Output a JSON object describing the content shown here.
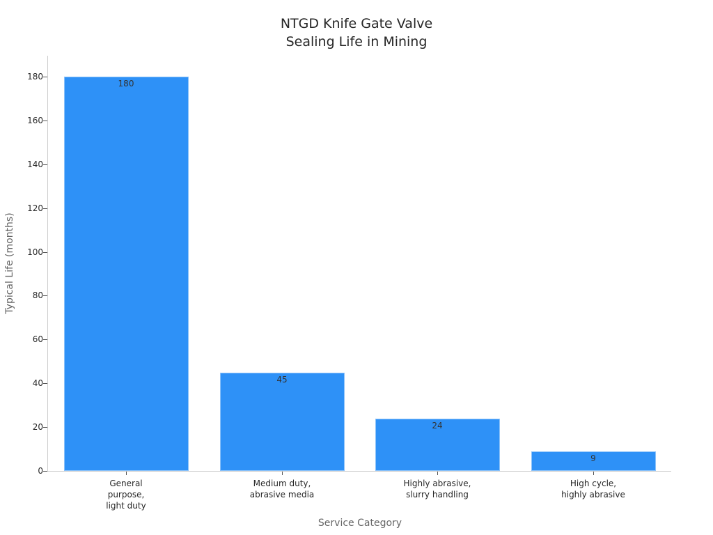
{
  "chart_data": {
    "type": "bar",
    "title": "NTGD Knife Gate Valve Sealing Life in Mining",
    "title_lines": [
      "NTGD Knife Gate Valve",
      "Sealing Life in Mining"
    ],
    "xlabel": "Service Category",
    "ylabel": "Typical Life (months)",
    "categories": [
      "General purpose, light duty",
      "Medium duty, abrasive media",
      "Highly abrasive, slurry handling",
      "High cycle, highly abrasive"
    ],
    "category_lines": [
      [
        "General",
        "purpose,",
        "light duty"
      ],
      [
        "Medium duty,",
        "abrasive media"
      ],
      [
        "Highly abrasive,",
        "slurry handling"
      ],
      [
        "High cycle,",
        "highly abrasive"
      ]
    ],
    "values": [
      180,
      45,
      24,
      9
    ],
    "value_labels": [
      "180",
      "45",
      "24",
      "9"
    ],
    "yticks": [
      "0",
      "20",
      "40",
      "60",
      "80",
      "100",
      "120",
      "140",
      "160",
      "180"
    ],
    "ylim": [
      0,
      189
    ],
    "grid": false,
    "legend": null,
    "bar_color": "#2e91f7"
  }
}
